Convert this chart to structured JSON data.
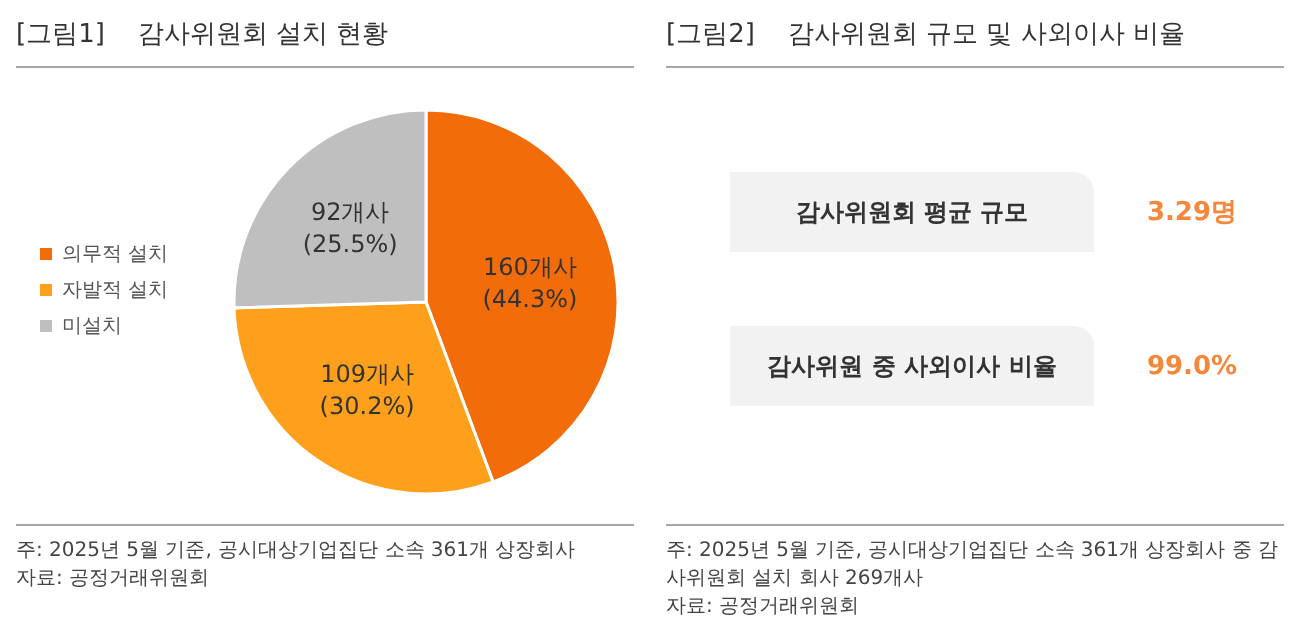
{
  "chart_data": [
    {
      "type": "pie",
      "title": "[그림1]    감사위원회 설치 현황",
      "categories": [
        "의무적 설치",
        "자발적 설치",
        "미설치"
      ],
      "values": [
        160,
        109,
        92
      ],
      "colors": [
        "#f36c0a",
        "#ffa01c",
        "#bfbfbf"
      ],
      "value_labels": [
        "160개사\n(44.3%)",
        "109개사\n(30.2%)",
        "92개사\n(25.5%)"
      ],
      "legend": "left",
      "annotations": [
        "주: 2025년 5월 기준, 공시대상기업집단 소속 361개 상장회사",
        "자료: 공정거래위원회"
      ]
    },
    {
      "type": "other",
      "title": "[그림2]    감사위원회 규모 및 사외이사 비율",
      "categories": [
        "감사위원회 평균 규모",
        "감사위원 중 사외이사 비율"
      ],
      "value_labels": [
        "3.29명",
        "99.0%"
      ],
      "color": "#f5873a",
      "annotations": [
        "주: 2025년 5월 기준, 공시대상기업집단 소속 361개 상장회사 중 감사위원회 설치 회사 269개사",
        "자료: 공정거래위원회"
      ]
    }
  ]
}
